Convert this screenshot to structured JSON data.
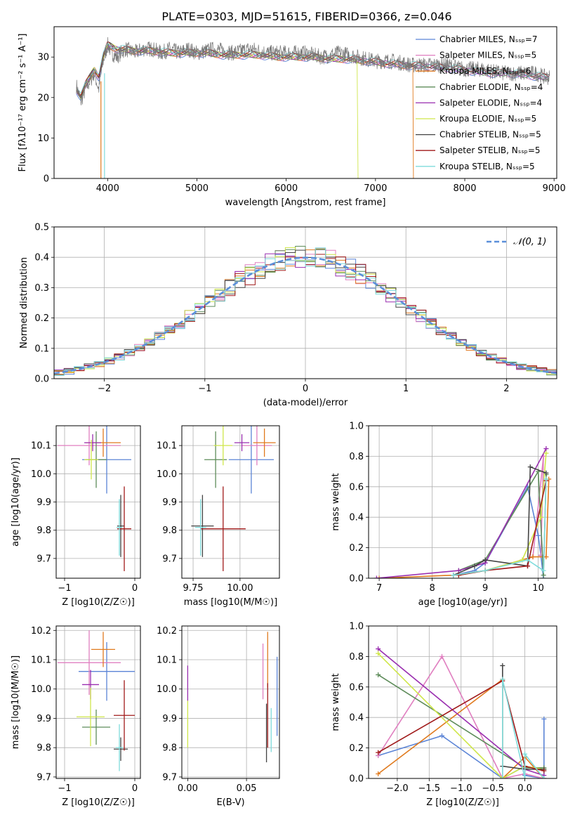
{
  "figure_title": "PLATE=0303, MJD=51615, FIBERID=0366, z=0.046",
  "colors": {
    "Chabrier MILES": "#5b84d6",
    "Salpeter MILES": "#e07fc0",
    "Kroupa MILES": "#e07a1e",
    "Chabrier ELODIE": "#5e8c5a",
    "Salpeter ELODIE": "#9a2fb0",
    "Kroupa ELODIE": "#cfe64a",
    "Chabrier STELIB": "#444444",
    "Salpeter STELIB": "#a01a1a",
    "Kroupa STELIB": "#7fdcdc",
    "normal": "#5b8fd9"
  },
  "chart_data": [
    {
      "id": "spectrum",
      "type": "line",
      "title": "PLATE=0303, MJD=51615, FIBERID=0366, z=0.046",
      "xlabel": "wavelength [Angstrom, rest frame]",
      "ylabel": "Flux [fλ10⁻¹⁷ erg cm⁻² s⁻¹ A⁻¹]",
      "xlim": [
        3400,
        9030
      ],
      "ylim": [
        0,
        37.5
      ],
      "xticks": [
        4000,
        5000,
        6000,
        7000,
        8000,
        9000
      ],
      "yticks": [
        0,
        10,
        20,
        30
      ],
      "legend_position": "upper right",
      "legend": [
        "Chabrier MILES, N_SSP=7",
        "Salpeter MILES, N_SSP=5",
        "Kroupa MILES, N_SSP=6",
        "Chabrier ELODIE, N_SSP=4",
        "Salpeter ELODIE, N_SSP=4",
        "Kroupa ELODIE, N_SSP=5",
        "Chabrier STELIB, N_SSP=5",
        "Salpeter STELIB, N_SSP=5",
        "Kroupa STELIB, N_SSP=5"
      ],
      "data_spectrum": {
        "x": [
          3650,
          3700,
          3750,
          3800,
          3850,
          3900,
          3950,
          4000,
          4050,
          4100,
          4200,
          4300,
          4400,
          4500,
          4600,
          4700,
          4800,
          4900,
          5000,
          5200,
          5400,
          5600,
          5800,
          6000,
          6200,
          6400,
          6600,
          6800,
          7000,
          7200,
          7400,
          7600,
          7800,
          8000,
          8200,
          8400,
          8600,
          8800,
          8900
        ],
        "y": [
          23,
          19,
          22,
          24,
          26,
          22,
          29,
          33,
          31,
          30,
          32,
          31,
          32,
          32,
          31,
          32,
          31,
          32,
          31,
          32,
          31,
          32,
          31,
          31,
          31,
          30,
          31,
          30,
          29,
          29,
          28,
          28,
          28,
          27,
          27,
          26,
          26,
          26,
          25
        ]
      },
      "model_curve": {
        "x": [
          3650,
          3700,
          3750,
          3800,
          3850,
          3900,
          3950,
          4000,
          4100,
          4300,
          4500,
          4700,
          4900,
          5100,
          5300,
          5500,
          5700,
          5900,
          6100,
          6300,
          6500,
          6700,
          6900,
          7100,
          7300,
          7500,
          7700,
          7900,
          8100,
          8300,
          8500,
          8700,
          8900
        ],
        "y": [
          22,
          20,
          23,
          25,
          27,
          25,
          30,
          33,
          32,
          31.5,
          31.5,
          31,
          31,
          31,
          30.5,
          30.5,
          30.5,
          30,
          30,
          30,
          29.5,
          29.5,
          29,
          28.5,
          28,
          27.8,
          27.5,
          27,
          26.5,
          26,
          26,
          25.5,
          25
        ]
      }
    },
    {
      "id": "residuals",
      "type": "step",
      "xlabel": "(data-model)/error",
      "ylabel": "Normed distribution",
      "xlim": [
        -2.5,
        2.5
      ],
      "ylim": [
        0,
        0.5
      ],
      "xticks": [
        -2,
        -1,
        0,
        1,
        2
      ],
      "yticks": [
        0.0,
        0.1,
        0.2,
        0.3,
        0.4,
        0.5
      ],
      "legend": [
        "N(0,1)"
      ],
      "legend_position": "upper right",
      "bin_width": 0.1,
      "series_gaussian": {
        "name": "N(0,1)",
        "mean": 0,
        "sigma": 1
      }
    },
    {
      "id": "age_vs_Z",
      "type": "errorbar",
      "xlabel": "Z [log10(Z/Z☉)]",
      "ylabel": "age  [log10(age/yr)]",
      "xlim": [
        -1.12,
        0.08
      ],
      "ylim": [
        9.63,
        10.17
      ],
      "xticks": [
        -1,
        0
      ],
      "yticks": [
        9.7,
        9.8,
        9.9,
        10.0,
        10.1
      ],
      "points": [
        {
          "model": "Chabrier MILES",
          "x": -0.4,
          "xerr": 0.35,
          "y": 10.05,
          "yerr": 0.12
        },
        {
          "model": "Salpeter MILES",
          "x": -0.65,
          "xerr": 0.45,
          "y": 10.1,
          "yerr": 0.07
        },
        {
          "model": "Kroupa MILES",
          "x": -0.45,
          "xerr": 0.25,
          "y": 10.11,
          "yerr": 0.05
        },
        {
          "model": "Chabrier ELODIE",
          "x": -0.55,
          "xerr": 0.15,
          "y": 10.05,
          "yerr": 0.1
        },
        {
          "model": "Salpeter ELODIE",
          "x": -0.6,
          "xerr": 0.12,
          "y": 10.11,
          "yerr": 0.03
        },
        {
          "model": "Kroupa ELODIE",
          "x": -0.62,
          "xerr": 0.1,
          "y": 10.05,
          "yerr": 0.07
        },
        {
          "model": "Chabrier STELIB",
          "x": -0.2,
          "xerr": 0.05,
          "y": 9.815,
          "yerr": 0.11
        },
        {
          "model": "Salpeter STELIB",
          "x": -0.15,
          "xerr": 0.1,
          "y": 9.805,
          "yerr": 0.15
        },
        {
          "model": "Kroupa STELIB",
          "x": -0.22,
          "xerr": 0.04,
          "y": 9.81,
          "yerr": 0.1
        }
      ]
    },
    {
      "id": "age_vs_mass",
      "type": "errorbar",
      "xlabel": "mass [log10(M/M☉)]",
      "ylabel": "",
      "xlim": [
        9.69,
        10.21
      ],
      "ylim": [
        9.63,
        10.17
      ],
      "xticks": [
        9.75,
        10.0
      ],
      "yticks": [
        9.7,
        9.8,
        9.9,
        10.0,
        10.1
      ],
      "points": [
        {
          "model": "Chabrier MILES",
          "x": 10.06,
          "xerr": 0.12,
          "y": 10.05,
          "yerr": 0.12
        },
        {
          "model": "Salpeter MILES",
          "x": 10.09,
          "xerr": 0.08,
          "y": 10.1,
          "yerr": 0.07
        },
        {
          "model": "Kroupa MILES",
          "x": 10.13,
          "xerr": 0.06,
          "y": 10.11,
          "yerr": 0.05
        },
        {
          "model": "Chabrier ELODIE",
          "x": 9.87,
          "xerr": 0.06,
          "y": 10.05,
          "yerr": 0.1
        },
        {
          "model": "Salpeter ELODIE",
          "x": 10.01,
          "xerr": 0.04,
          "y": 10.11,
          "yerr": 0.03
        },
        {
          "model": "Kroupa ELODIE",
          "x": 9.91,
          "xerr": 0.05,
          "y": 10.1,
          "yerr": 0.07
        },
        {
          "model": "Chabrier STELIB",
          "x": 9.8,
          "xerr": 0.06,
          "y": 9.815,
          "yerr": 0.11
        },
        {
          "model": "Salpeter STELIB",
          "x": 9.91,
          "xerr": 0.12,
          "y": 9.805,
          "yerr": 0.15
        },
        {
          "model": "Kroupa STELIB",
          "x": 9.79,
          "xerr": 0.03,
          "y": 9.81,
          "yerr": 0.1
        }
      ]
    },
    {
      "id": "weight_vs_age",
      "type": "line",
      "xlabel": "age  [log10(age/yr)]",
      "ylabel": "mass weight",
      "xlim": [
        6.8,
        10.35
      ],
      "ylim": [
        0,
        1.0
      ],
      "xticks": [
        7,
        8,
        9,
        10
      ],
      "yticks": [
        0.0,
        0.2,
        0.4,
        0.6,
        0.8,
        1.0
      ],
      "series": [
        {
          "model": "Chabrier MILES",
          "x": [
            8.4,
            8.8,
            9.0,
            9.8,
            10.0,
            10.05,
            10.1
          ],
          "y": [
            0.02,
            0.05,
            0.1,
            0.6,
            0.28,
            0.15,
            0.0
          ]
        },
        {
          "model": "Salpeter MILES",
          "x": [
            8.5,
            9.0,
            9.9,
            10.1,
            10.05
          ],
          "y": [
            0.02,
            0.05,
            0.14,
            0.8,
            0.15
          ]
        },
        {
          "model": "Kroupa MILES",
          "x": [
            7.0,
            8.4,
            9.0,
            9.9,
            10.15,
            10.2
          ],
          "y": [
            0.0,
            0.02,
            0.05,
            0.14,
            0.14,
            0.65
          ]
        },
        {
          "model": "Chabrier ELODIE",
          "x": [
            8.5,
            9.0,
            10.0,
            10.1,
            10.15
          ],
          "y": [
            0.05,
            0.12,
            0.7,
            0.02,
            0.68
          ]
        },
        {
          "model": "Salpeter ELODIE",
          "x": [
            6.95,
            8.5,
            9.0,
            10.15
          ],
          "y": [
            0.0,
            0.05,
            0.1,
            0.85
          ]
        },
        {
          "model": "Kroupa ELODIE",
          "x": [
            8.5,
            9.0,
            9.7,
            10.05,
            10.15
          ],
          "y": [
            0.02,
            0.05,
            0.12,
            0.4,
            0.82
          ]
        },
        {
          "model": "Chabrier STELIB",
          "x": [
            8.4,
            8.8,
            9.0,
            9.8,
            9.85,
            10.15
          ],
          "y": [
            0.02,
            0.08,
            0.12,
            0.08,
            0.73,
            0.69
          ]
        },
        {
          "model": "Salpeter STELIB",
          "x": [
            8.5,
            9.0,
            9.8,
            10.15
          ],
          "y": [
            0.02,
            0.05,
            0.08,
            0.64
          ]
        },
        {
          "model": "Kroupa STELIB",
          "x": [
            8.4,
            9.0,
            9.8,
            10.1,
            10.15
          ],
          "y": [
            0.02,
            0.05,
            0.12,
            0.05,
            0.65
          ]
        }
      ]
    },
    {
      "id": "mass_vs_Z",
      "type": "errorbar",
      "xlabel": "Z [log10(Z/Z☉)]",
      "ylabel": "mass [log10(M/M☉)]",
      "xlim": [
        -1.12,
        0.08
      ],
      "ylim": [
        9.695,
        10.215
      ],
      "xticks": [
        -1,
        0
      ],
      "yticks": [
        9.7,
        9.8,
        9.9,
        10.0,
        10.1,
        10.2
      ],
      "points": [
        {
          "model": "Chabrier MILES",
          "x": -0.4,
          "xerr": 0.4,
          "y": 10.06,
          "yerr": 0.1
        },
        {
          "model": "Salpeter MILES",
          "x": -0.65,
          "xerr": 0.45,
          "y": 10.09,
          "yerr": 0.11
        },
        {
          "model": "Kroupa MILES",
          "x": -0.45,
          "xerr": 0.17,
          "y": 10.135,
          "yerr": 0.06
        },
        {
          "model": "Chabrier ELODIE",
          "x": -0.55,
          "xerr": 0.2,
          "y": 9.87,
          "yerr": 0.06
        },
        {
          "model": "Salpeter ELODIE",
          "x": -0.63,
          "xerr": 0.12,
          "y": 10.015,
          "yerr": 0.05
        },
        {
          "model": "Kroupa ELODIE",
          "x": -0.63,
          "xerr": 0.2,
          "y": 9.905,
          "yerr": 0.1
        },
        {
          "model": "Chabrier STELIB",
          "x": -0.2,
          "xerr": 0.1,
          "y": 9.795,
          "yerr": 0.04
        },
        {
          "model": "Salpeter STELIB",
          "x": -0.15,
          "xerr": 0.15,
          "y": 9.91,
          "yerr": 0.12
        },
        {
          "model": "Kroupa STELIB",
          "x": -0.22,
          "xerr": 0.05,
          "y": 9.8,
          "yerr": 0.08
        }
      ]
    },
    {
      "id": "mass_vs_ebv",
      "type": "errorbar",
      "xlabel": "E(B-V)",
      "ylabel": "",
      "xlim": [
        -0.005,
        0.078
      ],
      "ylim": [
        9.695,
        10.215
      ],
      "xticks": [
        0.0,
        0.05
      ],
      "yticks": [
        9.7,
        9.8,
        9.9,
        10.0,
        10.1,
        10.2
      ],
      "points": [
        {
          "model": "Chabrier MILES",
          "x": 0.076,
          "y": 9.975,
          "yerr": 0.135
        },
        {
          "model": "Salpeter MILES",
          "x": 0.064,
          "y": 10.06,
          "yerr": 0.095
        },
        {
          "model": "Kroupa MILES",
          "x": 0.068,
          "y": 10.1,
          "yerr": 0.095
        },
        {
          "model": "Salpeter ELODIE",
          "x": 0.0,
          "y": 10.02,
          "yerr": 0.06
        },
        {
          "model": "Kroupa ELODIE",
          "x": 0.0,
          "y": 9.88,
          "yerr": 0.08
        },
        {
          "model": "Chabrier STELIB",
          "x": 0.067,
          "y": 9.85,
          "yerr": 0.1
        },
        {
          "model": "Salpeter STELIB",
          "x": 0.068,
          "y": 9.91,
          "yerr": 0.11
        },
        {
          "model": "Kroupa STELIB",
          "x": 0.071,
          "y": 9.86,
          "yerr": 0.075
        }
      ]
    },
    {
      "id": "weight_vs_Z",
      "type": "line",
      "xlabel": "Z [log10(Z/Z☉)]",
      "ylabel": "mass weight",
      "xlim": [
        -2.45,
        0.5
      ],
      "ylim": [
        0,
        1.0
      ],
      "xticks": [
        -2.0,
        -1.5,
        -1.0,
        -0.5,
        0.0
      ],
      "yticks": [
        0.0,
        0.2,
        0.4,
        0.6,
        0.8,
        1.0
      ],
      "series": [
        {
          "model": "Chabrier MILES",
          "x": [
            -2.3,
            -1.3,
            -0.35,
            0.0,
            0.0,
            0.3,
            0.3
          ],
          "y": [
            0.15,
            0.28,
            0.0,
            0.08,
            0.02,
            0.0,
            0.39
          ]
        },
        {
          "model": "Salpeter MILES",
          "x": [
            -2.3,
            -1.3,
            -0.35,
            0.0,
            0.3
          ],
          "y": [
            0.15,
            0.8,
            0.0,
            0.03,
            0.0
          ]
        },
        {
          "model": "Kroupa MILES",
          "x": [
            -2.3,
            -0.35,
            -0.35,
            0.0,
            0.3
          ],
          "y": [
            0.03,
            0.65,
            0.0,
            0.14,
            0.0
          ]
        },
        {
          "model": "Chabrier ELODIE",
          "x": [
            -2.3,
            0.0,
            0.3
          ],
          "y": [
            0.68,
            0.07,
            0.07
          ]
        },
        {
          "model": "Salpeter ELODIE",
          "x": [
            -2.3,
            0.0,
            0.3
          ],
          "y": [
            0.85,
            0.06,
            0.02
          ]
        },
        {
          "model": "Kroupa ELODIE",
          "x": [
            -2.3,
            -0.35,
            0.0,
            0.3
          ],
          "y": [
            0.82,
            0.0,
            0.08,
            0.06
          ]
        },
        {
          "model": "Chabrier STELIB",
          "x": [
            -0.35,
            -0.35,
            0.0,
            0.3
          ],
          "y": [
            0.74,
            0.08,
            0.06,
            0.06
          ]
        },
        {
          "model": "Salpeter STELIB",
          "x": [
            -2.3,
            -0.35,
            0.0,
            0.3
          ],
          "y": [
            0.17,
            0.64,
            0.08,
            0.05
          ]
        },
        {
          "model": "Kroupa STELIB",
          "x": [
            -0.35,
            -0.35,
            0.0,
            0.0,
            0.3
          ],
          "y": [
            0.0,
            0.65,
            0.0,
            0.16,
            0.0
          ]
        }
      ]
    }
  ]
}
